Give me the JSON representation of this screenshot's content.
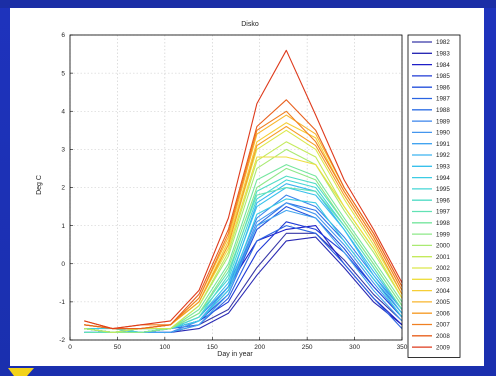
{
  "theme": {
    "slide_background": "#1d31b6",
    "panel_background": "#ffffff",
    "accent_color": "#f2d21a"
  },
  "chart_data": {
    "type": "line",
    "title": "Disko",
    "xlabel": "Day in year",
    "ylabel": "Deg C",
    "xlim": [
      0,
      350
    ],
    "ylim": [
      -2,
      6
    ],
    "xticks": [
      0,
      50,
      100,
      150,
      200,
      250,
      300,
      350
    ],
    "yticks": [
      -2,
      -1,
      0,
      1,
      2,
      3,
      4,
      5,
      6
    ],
    "grid": true,
    "legend_position": "right",
    "x": [
      15,
      45,
      75,
      106,
      136,
      167,
      197,
      228,
      259,
      289,
      320,
      350
    ],
    "series": [
      {
        "name": "1982",
        "color": "#3838a8",
        "values": [
          -1.7,
          -1.8,
          -1.8,
          -1.8,
          -1.6,
          -1.2,
          -0.1,
          0.8,
          0.8,
          0.1,
          -0.8,
          -1.5
        ]
      },
      {
        "name": "1983",
        "color": "#2a2ab4",
        "values": [
          -1.8,
          -1.8,
          -1.8,
          -1.8,
          -1.7,
          -1.3,
          -0.3,
          0.6,
          0.7,
          -0.1,
          -1.0,
          -1.6
        ]
      },
      {
        "name": "1984",
        "color": "#1e1ec8",
        "values": [
          -1.7,
          -1.8,
          -1.8,
          -1.7,
          -1.5,
          -0.6,
          0.6,
          0.9,
          1.0,
          0.0,
          -0.9,
          -1.6
        ]
      },
      {
        "name": "1985",
        "color": "#1f3ad6",
        "values": [
          -1.7,
          -1.8,
          -1.8,
          -1.7,
          -1.5,
          -1.0,
          0.3,
          1.1,
          0.9,
          0.3,
          -0.6,
          -1.4
        ]
      },
      {
        "name": "1986",
        "color": "#2450dc",
        "values": [
          -1.7,
          -1.8,
          -1.8,
          -1.8,
          -1.5,
          -0.8,
          0.9,
          1.5,
          1.2,
          0.4,
          -0.6,
          -1.4
        ]
      },
      {
        "name": "1987",
        "color": "#2a64e2",
        "values": [
          -1.8,
          -1.8,
          -1.8,
          -1.7,
          -1.6,
          -0.9,
          0.6,
          1.0,
          0.8,
          0.0,
          -0.9,
          -1.7
        ]
      },
      {
        "name": "1988",
        "color": "#3070e6",
        "values": [
          -1.6,
          -1.7,
          -1.8,
          -1.7,
          -1.5,
          -0.7,
          1.0,
          1.6,
          1.4,
          0.6,
          -0.4,
          -1.3
        ]
      },
      {
        "name": "1989",
        "color": "#3a84ec",
        "values": [
          -1.7,
          -1.8,
          -1.7,
          -1.7,
          -1.4,
          -0.6,
          1.2,
          1.8,
          1.5,
          0.7,
          -0.3,
          -1.2
        ]
      },
      {
        "name": "1990",
        "color": "#4496ee",
        "values": [
          -1.7,
          -1.8,
          -1.8,
          -1.8,
          -1.5,
          -0.7,
          1.1,
          1.6,
          1.3,
          0.5,
          -0.5,
          -1.4
        ]
      },
      {
        "name": "1991",
        "color": "#42a4f0",
        "values": [
          -1.8,
          -1.8,
          -1.8,
          -1.8,
          -1.6,
          -0.8,
          1.0,
          1.4,
          1.2,
          0.3,
          -0.7,
          -1.5
        ]
      },
      {
        "name": "1992",
        "color": "#3cb4f0",
        "values": [
          -1.7,
          -1.8,
          -1.8,
          -1.7,
          -1.5,
          -0.6,
          1.6,
          2.1,
          1.9,
          0.9,
          -0.2,
          -1.2
        ]
      },
      {
        "name": "1993",
        "color": "#38c0ec",
        "values": [
          -1.8,
          -1.8,
          -1.8,
          -1.7,
          -1.4,
          -0.5,
          1.5,
          2.0,
          1.8,
          0.9,
          -0.3,
          -1.3
        ]
      },
      {
        "name": "1994",
        "color": "#3ccce4",
        "values": [
          -1.7,
          -1.7,
          -1.8,
          -1.7,
          -1.5,
          -0.7,
          1.3,
          1.7,
          1.6,
          0.6,
          -0.4,
          -1.4
        ]
      },
      {
        "name": "1995",
        "color": "#44d6d6",
        "values": [
          -1.7,
          -1.8,
          -1.8,
          -1.7,
          -1.3,
          -0.4,
          1.7,
          2.2,
          2.0,
          1.0,
          -0.1,
          -1.2
        ]
      },
      {
        "name": "1996",
        "color": "#52dcc6",
        "values": [
          -1.7,
          -1.8,
          -1.7,
          -1.7,
          -1.4,
          -0.3,
          1.9,
          2.3,
          2.1,
          1.1,
          0.0,
          -1.1
        ]
      },
      {
        "name": "1997",
        "color": "#62e2b4",
        "values": [
          -1.8,
          -1.8,
          -1.8,
          -1.7,
          -1.3,
          -0.2,
          1.8,
          2.0,
          1.9,
          1.0,
          -0.1,
          -1.2
        ]
      },
      {
        "name": "1998",
        "color": "#76e69e",
        "values": [
          -1.7,
          -1.8,
          -1.7,
          -1.7,
          -1.2,
          0.0,
          2.2,
          2.6,
          2.3,
          1.2,
          0.1,
          -1.0
        ]
      },
      {
        "name": "1999",
        "color": "#8ee888",
        "values": [
          -1.7,
          -1.8,
          -1.8,
          -1.7,
          -1.3,
          -0.1,
          2.0,
          2.5,
          2.2,
          1.1,
          0.0,
          -1.1
        ]
      },
      {
        "name": "2000",
        "color": "#aaea72",
        "values": [
          -1.6,
          -1.7,
          -1.7,
          -1.7,
          -1.1,
          0.2,
          2.5,
          3.0,
          2.6,
          1.4,
          0.3,
          -0.9
        ]
      },
      {
        "name": "2001",
        "color": "#c4ea5c",
        "values": [
          -1.7,
          -1.8,
          -1.7,
          -1.7,
          -1.1,
          0.3,
          2.7,
          3.2,
          2.8,
          1.5,
          0.4,
          -0.9
        ]
      },
      {
        "name": "2002",
        "color": "#dce84c",
        "values": [
          -1.6,
          -1.7,
          -1.7,
          -1.6,
          -1.0,
          0.5,
          3.0,
          3.5,
          3.0,
          1.7,
          0.5,
          -0.8
        ]
      },
      {
        "name": "2003",
        "color": "#eede40",
        "values": [
          -1.6,
          -1.7,
          -1.7,
          -1.6,
          -1.0,
          0.4,
          2.8,
          2.8,
          2.6,
          1.5,
          0.4,
          -0.9
        ]
      },
      {
        "name": "2004",
        "color": "#f6ce36",
        "values": [
          -1.5,
          -1.7,
          -1.7,
          -1.6,
          -1.0,
          0.6,
          3.2,
          3.7,
          3.3,
          1.9,
          0.7,
          -0.7
        ]
      },
      {
        "name": "2005",
        "color": "#f8b62e",
        "values": [
          -1.6,
          -1.7,
          -1.7,
          -1.6,
          -0.9,
          0.7,
          3.4,
          3.9,
          3.4,
          2.0,
          0.8,
          -0.6
        ]
      },
      {
        "name": "2006",
        "color": "#f69c28",
        "values": [
          -1.6,
          -1.7,
          -1.7,
          -1.6,
          -1.0,
          0.5,
          3.1,
          3.6,
          3.1,
          1.8,
          0.6,
          -0.8
        ]
      },
      {
        "name": "2007",
        "color": "#f08022",
        "values": [
          -1.5,
          -1.7,
          -1.6,
          -1.6,
          -0.9,
          0.8,
          3.5,
          4.0,
          3.2,
          1.9,
          0.7,
          -0.7
        ]
      },
      {
        "name": "2008",
        "color": "#e8601e",
        "values": [
          -1.6,
          -1.7,
          -1.7,
          -1.6,
          -0.8,
          0.9,
          3.6,
          4.3,
          3.5,
          2.0,
          0.8,
          -0.6
        ]
      },
      {
        "name": "2009",
        "color": "#de3a1c",
        "values": [
          -1.5,
          -1.7,
          -1.6,
          -1.5,
          -0.7,
          1.2,
          4.2,
          5.6,
          3.9,
          2.2,
          0.9,
          -0.5
        ]
      }
    ]
  }
}
